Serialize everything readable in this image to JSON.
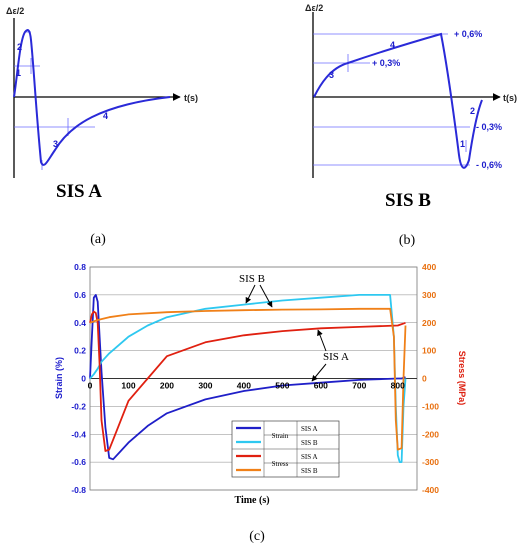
{
  "panel_a": {
    "y_label": "Δε/2",
    "x_label": "t(s)",
    "segment_labels": [
      "1",
      "2",
      "3",
      "4"
    ],
    "title": "SIS A",
    "caption": "(a)"
  },
  "panel_b": {
    "y_label": "Δε/2",
    "x_label": "t(s)",
    "segment_labels": [
      "1",
      "2",
      "3",
      "4"
    ],
    "level_labels": [
      "+ 0,6%",
      "+ 0,3%",
      "- 0,3%",
      "- 0,6%"
    ],
    "title": "SIS B",
    "caption": "(b)"
  },
  "panel_c": {
    "caption": "(c)",
    "annotation_sis_b": "SIS B",
    "annotation_sis_a": "SIS A",
    "legend": {
      "rows": [
        {
          "group": "Strain",
          "label": "SIS A",
          "color": "#1f1fc8"
        },
        {
          "group": "",
          "label": "SIS B",
          "color": "#2ec8f0"
        },
        {
          "group": "Stress",
          "label": "SIS A",
          "color": "#e02010"
        },
        {
          "group": "",
          "label": "SIS B",
          "color": "#f08018"
        }
      ]
    }
  },
  "chart_data": {
    "type": "line",
    "title": "",
    "xlabel": "Time (s)",
    "ylabel": "Strain (%)",
    "y2label": "Stress (MPa)",
    "xlim": [
      0,
      850
    ],
    "ylim": [
      -0.8,
      0.8
    ],
    "y2lim": [
      -400,
      400
    ],
    "x_ticks": [
      0,
      100,
      200,
      300,
      400,
      500,
      600,
      700,
      800
    ],
    "y_ticks": [
      "-0.8",
      "-0.6",
      "-0.4",
      "-0.2",
      "0",
      "0.2",
      "0.4",
      "0.6",
      "0.8"
    ],
    "y2_ticks": [
      "-400",
      "-300",
      "-200",
      "-100",
      "0",
      "100",
      "200",
      "300",
      "400"
    ],
    "grid": true,
    "legend_position": "bottom-center",
    "series": [
      {
        "name": "Strain SIS A",
        "axis": "left",
        "color": "#1f1fc8",
        "x": [
          0,
          5,
          10,
          15,
          20,
          25,
          30,
          40,
          50,
          60,
          80,
          100,
          150,
          200,
          300,
          400,
          500,
          600,
          700,
          800,
          810,
          820
        ],
        "y": [
          0,
          0.3,
          0.58,
          0.6,
          0.55,
          0.3,
          0.05,
          -0.35,
          -0.57,
          -0.58,
          -0.52,
          -0.46,
          -0.34,
          -0.25,
          -0.15,
          -0.09,
          -0.05,
          -0.03,
          -0.01,
          0.0,
          0.0,
          0.01
        ]
      },
      {
        "name": "Strain SIS B",
        "axis": "left",
        "color": "#2ec8f0",
        "x": [
          0,
          10,
          20,
          30,
          50,
          100,
          150,
          200,
          300,
          400,
          500,
          600,
          700,
          780,
          790,
          795,
          800,
          805,
          810,
          815,
          820
        ],
        "y": [
          0,
          0.03,
          0.07,
          0.12,
          0.18,
          0.3,
          0.38,
          0.44,
          0.5,
          0.53,
          0.56,
          0.58,
          0.6,
          0.6,
          0.3,
          -0.2,
          -0.55,
          -0.6,
          -0.6,
          -0.2,
          0.0
        ]
      },
      {
        "name": "Stress SIS A",
        "axis": "right",
        "color": "#e02010",
        "x": [
          0,
          5,
          10,
          15,
          20,
          25,
          30,
          40,
          50,
          60,
          80,
          100,
          150,
          200,
          300,
          400,
          500,
          600,
          700,
          800,
          820
        ],
        "y": [
          200,
          230,
          240,
          235,
          200,
          50,
          -150,
          -260,
          -255,
          -220,
          -150,
          -80,
          0,
          80,
          130,
          155,
          170,
          180,
          185,
          190,
          200
        ]
      },
      {
        "name": "Stress SIS B",
        "axis": "right",
        "color": "#f08018",
        "x": [
          0,
          10,
          20,
          50,
          100,
          200,
          300,
          400,
          500,
          600,
          700,
          780,
          790,
          795,
          800,
          810,
          815,
          820
        ],
        "y": [
          200,
          205,
          210,
          220,
          230,
          238,
          242,
          245,
          247,
          248,
          250,
          250,
          150,
          -150,
          -255,
          -250,
          0,
          190
        ]
      }
    ]
  }
}
